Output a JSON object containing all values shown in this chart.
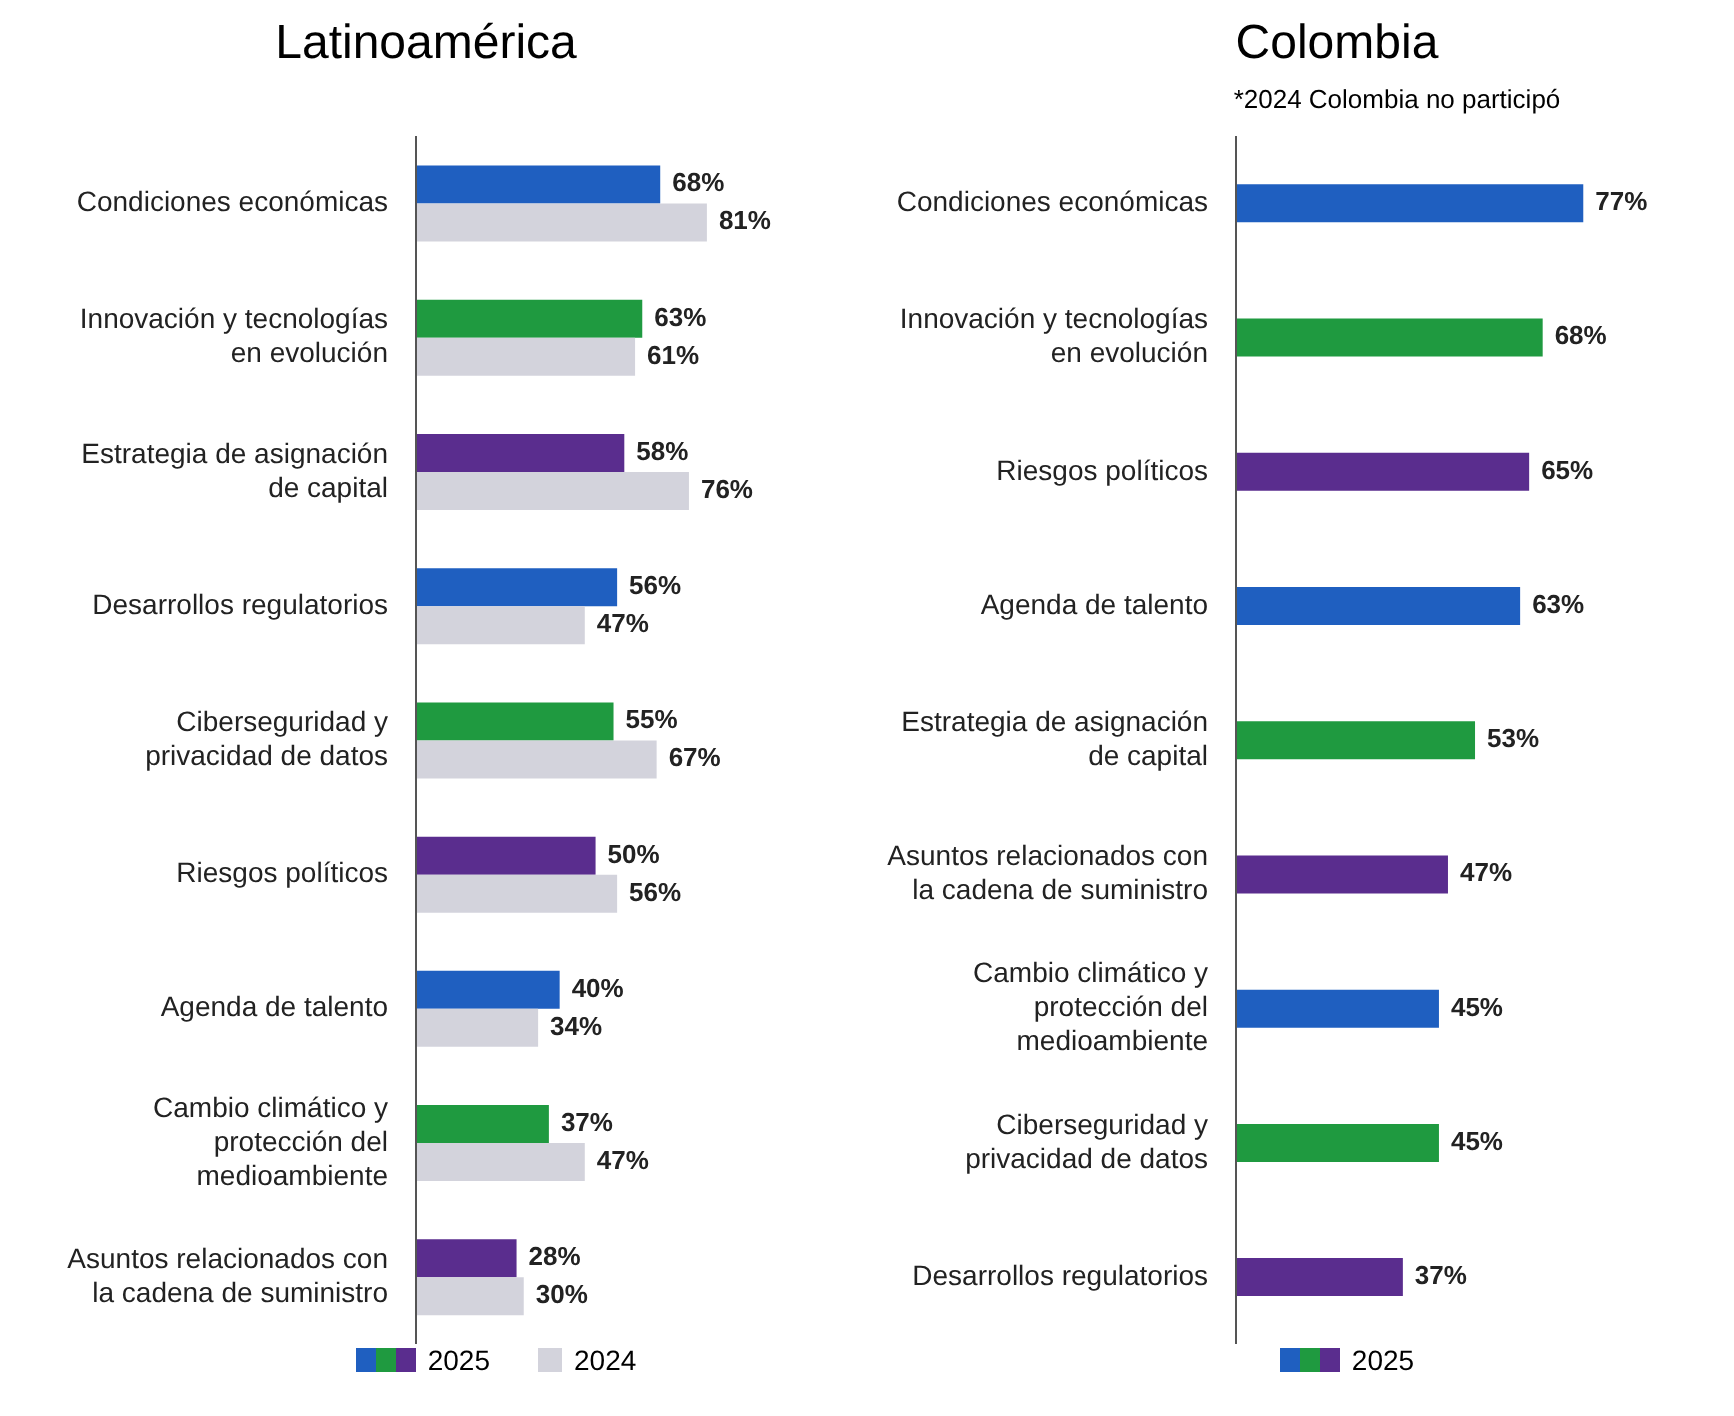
{
  "chart_data": [
    {
      "type": "bar",
      "orientation": "horizontal",
      "title": "Latinoamérica",
      "categories": [
        "Condiciones económicas",
        "Innovación y tecnologías en evolución",
        "Estrategia de asignación de capital",
        "Desarrollos regulatorios",
        "Ciberseguridad y privacidad de datos",
        "Riesgos políticos",
        "Agenda de talento",
        "Cambio climático y protección del medioambiente",
        "Asuntos relacionados con la cadena de suministro"
      ],
      "legend": "bottom",
      "series": [
        {
          "name": "2025",
          "colors": [
            "#1f5fc0",
            "#1f9a40",
            "#5a2d8e",
            "#1f5fc0",
            "#1f9a40",
            "#5a2d8e",
            "#1f5fc0",
            "#1f9a40",
            "#5a2d8e"
          ],
          "values": [
            68,
            63,
            58,
            56,
            55,
            50,
            40,
            37,
            28
          ],
          "value_labels": [
            "68%",
            "63%",
            "58%",
            "56%",
            "55%",
            "50%",
            "40%",
            "37%",
            "28%"
          ]
        },
        {
          "name": "2024",
          "color": "#d3d3dc",
          "values": [
            81,
            61,
            76,
            47,
            67,
            56,
            34,
            47,
            30
          ],
          "value_labels": [
            "81%",
            "61%",
            "76%",
            "47%",
            "67%",
            "56%",
            "34%",
            "47%",
            "30%"
          ]
        }
      ]
    },
    {
      "type": "bar",
      "orientation": "horizontal",
      "title": "Colombia",
      "annotations": [
        "*2024 Colombia no participó"
      ],
      "categories": [
        "Condiciones económicas",
        "Innovación y tecnologías en evolución",
        "Riesgos políticos",
        "Agenda de talento",
        "Estrategia de asignación de capital",
        "Asuntos relacionados con la cadena de suministro",
        "Cambio climático y protección del medioambiente",
        "Ciberseguridad y privacidad de datos",
        "Desarrollos regulatorios"
      ],
      "legend": "bottom",
      "series": [
        {
          "name": "2025",
          "colors": [
            "#1f5fc0",
            "#1f9a40",
            "#5a2d8e",
            "#1f5fc0",
            "#1f9a40",
            "#5a2d8e",
            "#1f5fc0",
            "#1f9a40",
            "#5a2d8e"
          ],
          "values": [
            77,
            68,
            65,
            63,
            53,
            47,
            45,
            45,
            37
          ],
          "value_labels": [
            "77%",
            "68%",
            "65%",
            "63%",
            "53%",
            "47%",
            "45%",
            "45%",
            "37%"
          ]
        }
      ]
    }
  ]
}
